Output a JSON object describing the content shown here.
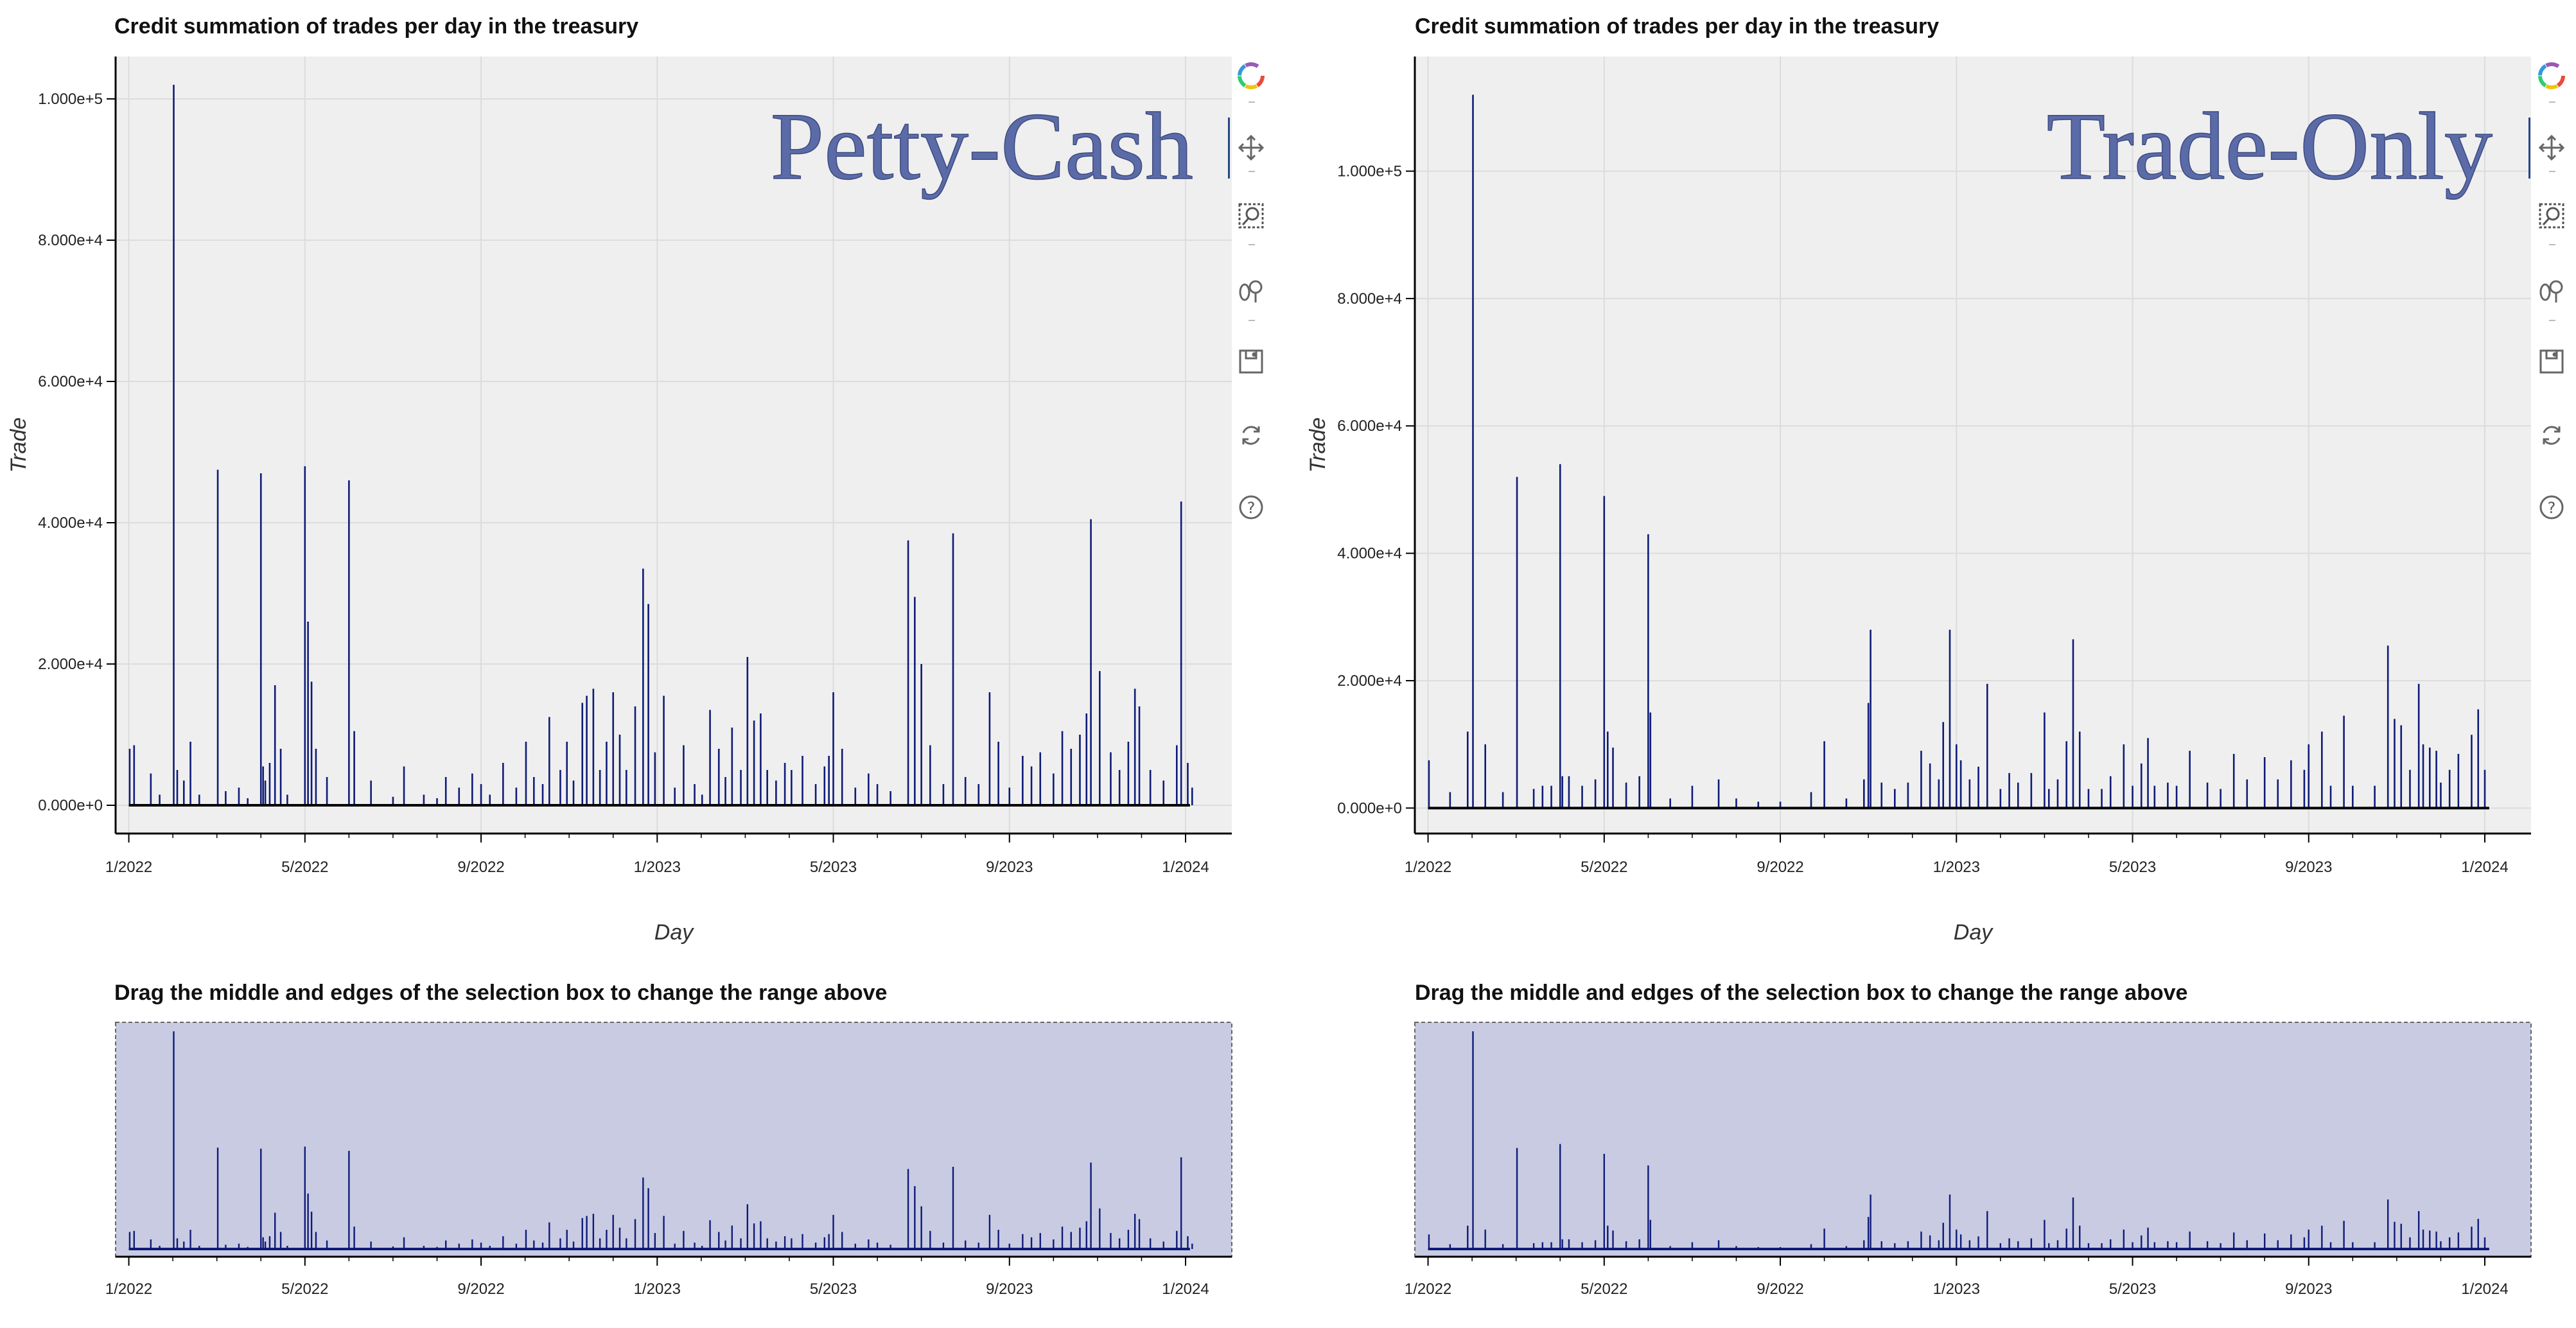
{
  "chart_data": [
    {
      "id": "main-left",
      "type": "bar",
      "title": "Credit summation of trades per day in the treasury",
      "watermark": "Petty-Cash",
      "xlabel": "Day",
      "ylabel": "Trade",
      "x_ticks": [
        "1/2022",
        "5/2022",
        "9/2022",
        "1/2023",
        "5/2023",
        "9/2023",
        "1/2024"
      ],
      "y_ticks": [
        "0.000e+0",
        "2.000e+4",
        "4.000e+4",
        "6.000e+4",
        "8.000e+4",
        "1.000e+5"
      ],
      "ylim": [
        -4000,
        106000
      ],
      "xlim_months": [
        -0.3,
        25.05
      ],
      "spikes": [
        [
          0.02,
          8000
        ],
        [
          0.12,
          8500
        ],
        [
          0.5,
          4500
        ],
        [
          0.7,
          1500
        ],
        [
          1.02,
          102000
        ],
        [
          1.1,
          5000
        ],
        [
          1.25,
          3500
        ],
        [
          1.4,
          9000
        ],
        [
          1.6,
          1500
        ],
        [
          2.02,
          47500
        ],
        [
          2.2,
          2000
        ],
        [
          2.5,
          2500
        ],
        [
          2.7,
          1000
        ],
        [
          3.0,
          47000
        ],
        [
          3.05,
          5500
        ],
        [
          3.1,
          3500
        ],
        [
          3.2,
          6000
        ],
        [
          3.32,
          17000
        ],
        [
          3.45,
          8000
        ],
        [
          3.6,
          1500
        ],
        [
          4.0,
          48000
        ],
        [
          4.07,
          26000
        ],
        [
          4.15,
          17500
        ],
        [
          4.25,
          8000
        ],
        [
          4.5,
          4000
        ],
        [
          5.0,
          46000
        ],
        [
          5.12,
          10500
        ],
        [
          5.5,
          3500
        ],
        [
          6.0,
          1200
        ],
        [
          6.25,
          5500
        ],
        [
          6.7,
          1500
        ],
        [
          7.0,
          1000
        ],
        [
          7.2,
          4000
        ],
        [
          7.5,
          2500
        ],
        [
          7.8,
          4500
        ],
        [
          8.0,
          3000
        ],
        [
          8.2,
          1500
        ],
        [
          8.5,
          6000
        ],
        [
          8.8,
          2500
        ],
        [
          9.02,
          9000
        ],
        [
          9.2,
          4000
        ],
        [
          9.4,
          3000
        ],
        [
          9.55,
          12500
        ],
        [
          9.8,
          5000
        ],
        [
          9.95,
          9000
        ],
        [
          10.1,
          3500
        ],
        [
          10.3,
          14500
        ],
        [
          10.4,
          15500
        ],
        [
          10.55,
          16500
        ],
        [
          10.7,
          5000
        ],
        [
          10.85,
          9000
        ],
        [
          11.0,
          16000
        ],
        [
          11.15,
          10000
        ],
        [
          11.3,
          5000
        ],
        [
          11.5,
          14000
        ],
        [
          11.68,
          33500
        ],
        [
          11.8,
          28500
        ],
        [
          11.95,
          7500
        ],
        [
          12.15,
          15500
        ],
        [
          12.4,
          2500
        ],
        [
          12.6,
          8500
        ],
        [
          12.85,
          3000
        ],
        [
          13.02,
          1500
        ],
        [
          13.2,
          13500
        ],
        [
          13.4,
          8000
        ],
        [
          13.55,
          4000
        ],
        [
          13.7,
          11000
        ],
        [
          13.9,
          5000
        ],
        [
          14.05,
          21000
        ],
        [
          14.2,
          12000
        ],
        [
          14.35,
          13000
        ],
        [
          14.5,
          5000
        ],
        [
          14.7,
          3500
        ],
        [
          14.9,
          6000
        ],
        [
          15.05,
          5000
        ],
        [
          15.3,
          7000
        ],
        [
          15.6,
          3000
        ],
        [
          15.8,
          5500
        ],
        [
          15.9,
          7000
        ],
        [
          16.0,
          16000
        ],
        [
          16.2,
          8000
        ],
        [
          16.5,
          2500
        ],
        [
          16.8,
          4500
        ],
        [
          17.0,
          3000
        ],
        [
          17.3,
          2000
        ],
        [
          17.7,
          37500
        ],
        [
          17.85,
          29500
        ],
        [
          18.0,
          20000
        ],
        [
          18.2,
          8500
        ],
        [
          18.5,
          3000
        ],
        [
          18.72,
          38500
        ],
        [
          19.0,
          4000
        ],
        [
          19.3,
          3000
        ],
        [
          19.55,
          16000
        ],
        [
          19.75,
          9000
        ],
        [
          20.0,
          2500
        ],
        [
          20.3,
          7000
        ],
        [
          20.5,
          5500
        ],
        [
          20.7,
          7500
        ],
        [
          21.0,
          4500
        ],
        [
          21.2,
          10500
        ],
        [
          21.4,
          8000
        ],
        [
          21.6,
          10000
        ],
        [
          21.75,
          13000
        ],
        [
          21.85,
          40500
        ],
        [
          22.05,
          19000
        ],
        [
          22.3,
          7500
        ],
        [
          22.5,
          5000
        ],
        [
          22.7,
          9000
        ],
        [
          22.85,
          16500
        ],
        [
          22.95,
          14000
        ],
        [
          23.2,
          5000
        ],
        [
          23.5,
          3500
        ],
        [
          23.8,
          8500
        ],
        [
          23.9,
          43000
        ],
        [
          24.05,
          6000
        ],
        [
          24.15,
          2500
        ]
      ]
    },
    {
      "id": "main-right",
      "type": "bar",
      "title": "Credit summation of trades per day in the treasury",
      "watermark": "Trade-Only",
      "xlabel": "Day",
      "ylabel": "Trade",
      "x_ticks": [
        "1/2022",
        "5/2022",
        "9/2022",
        "1/2023",
        "5/2023",
        "9/2023",
        "1/2024"
      ],
      "y_ticks": [
        "0.000e+0",
        "2.000e+4",
        "4.000e+4",
        "6.000e+4",
        "8.000e+4",
        "1.000e+5"
      ],
      "ylim": [
        -4000,
        118000
      ],
      "xlim_months": [
        -0.3,
        25.05
      ],
      "spikes": [
        [
          0.02,
          7500
        ],
        [
          0.5,
          2500
        ],
        [
          0.9,
          12000
        ],
        [
          1.02,
          112000
        ],
        [
          1.3,
          10000
        ],
        [
          1.7,
          2500
        ],
        [
          2.02,
          52000
        ],
        [
          2.4,
          3000
        ],
        [
          2.6,
          3500
        ],
        [
          2.8,
          3500
        ],
        [
          3.0,
          54000
        ],
        [
          3.05,
          5000
        ],
        [
          3.2,
          5000
        ],
        [
          3.5,
          3500
        ],
        [
          3.8,
          4500
        ],
        [
          4.0,
          49000
        ],
        [
          4.08,
          12000
        ],
        [
          4.2,
          9500
        ],
        [
          4.5,
          4000
        ],
        [
          4.8,
          5000
        ],
        [
          5.0,
          43000
        ],
        [
          5.05,
          15000
        ],
        [
          5.5,
          1500
        ],
        [
          6.0,
          3500
        ],
        [
          6.6,
          4500
        ],
        [
          7.0,
          1500
        ],
        [
          7.5,
          1000
        ],
        [
          8.0,
          1000
        ],
        [
          8.7,
          2500
        ],
        [
          9.0,
          10500
        ],
        [
          9.5,
          1500
        ],
        [
          9.9,
          4500
        ],
        [
          10.0,
          16500
        ],
        [
          10.05,
          28000
        ],
        [
          10.3,
          4000
        ],
        [
          10.6,
          3000
        ],
        [
          10.9,
          4000
        ],
        [
          11.2,
          9000
        ],
        [
          11.4,
          7000
        ],
        [
          11.6,
          4500
        ],
        [
          11.7,
          13500
        ],
        [
          11.85,
          28000
        ],
        [
          12.0,
          10000
        ],
        [
          12.1,
          7500
        ],
        [
          12.3,
          4500
        ],
        [
          12.5,
          6500
        ],
        [
          12.7,
          19500
        ],
        [
          13.0,
          3000
        ],
        [
          13.2,
          5500
        ],
        [
          13.4,
          4000
        ],
        [
          13.7,
          5500
        ],
        [
          14.0,
          15000
        ],
        [
          14.1,
          3000
        ],
        [
          14.3,
          4500
        ],
        [
          14.5,
          10500
        ],
        [
          14.65,
          26500
        ],
        [
          14.8,
          12000
        ],
        [
          15.0,
          3000
        ],
        [
          15.3,
          3000
        ],
        [
          15.5,
          5000
        ],
        [
          15.8,
          10000
        ],
        [
          16.0,
          3500
        ],
        [
          16.2,
          7000
        ],
        [
          16.35,
          11000
        ],
        [
          16.5,
          3500
        ],
        [
          16.8,
          4000
        ],
        [
          17.0,
          3500
        ],
        [
          17.3,
          9000
        ],
        [
          17.7,
          4000
        ],
        [
          18.0,
          3000
        ],
        [
          18.3,
          8500
        ],
        [
          18.6,
          4500
        ],
        [
          19.0,
          8000
        ],
        [
          19.3,
          4500
        ],
        [
          19.6,
          7500
        ],
        [
          19.9,
          6000
        ],
        [
          20.0,
          10000
        ],
        [
          20.3,
          12000
        ],
        [
          20.5,
          3500
        ],
        [
          20.8,
          14500
        ],
        [
          21.0,
          3500
        ],
        [
          21.5,
          3500
        ],
        [
          21.8,
          25500
        ],
        [
          21.95,
          14000
        ],
        [
          22.1,
          13000
        ],
        [
          22.3,
          6000
        ],
        [
          22.5,
          19500
        ],
        [
          22.6,
          10000
        ],
        [
          22.75,
          9500
        ],
        [
          22.9,
          9000
        ],
        [
          23.0,
          4000
        ],
        [
          23.2,
          6000
        ],
        [
          23.4,
          8500
        ],
        [
          23.7,
          11500
        ],
        [
          23.85,
          15500
        ],
        [
          24.0,
          6000
        ]
      ]
    }
  ],
  "range_tools": [
    {
      "id": "range-left",
      "title": "Drag the middle and edges of the selection box to change the range above",
      "x_ticks": [
        "1/2022",
        "5/2022",
        "9/2022",
        "1/2023",
        "5/2023",
        "9/2023",
        "1/2024"
      ]
    },
    {
      "id": "range-right",
      "title": "Drag the middle and edges of the selection box to change the range above",
      "x_ticks": [
        "1/2022",
        "5/2022",
        "9/2022",
        "1/2023",
        "5/2023",
        "9/2023",
        "1/2024"
      ]
    }
  ],
  "toolbar_icons": [
    "bokeh-logo-icon",
    "pan-icon",
    "box-zoom-icon",
    "wheel-zoom-icon",
    "save-icon",
    "reset-icon",
    "help-icon"
  ],
  "colors": {
    "bar": "#0f1b78",
    "plot_bg": "#efefef",
    "range_bg": "#c8cbe2",
    "grid": "#dcdcdc",
    "watermark": "#5b6ba8"
  }
}
